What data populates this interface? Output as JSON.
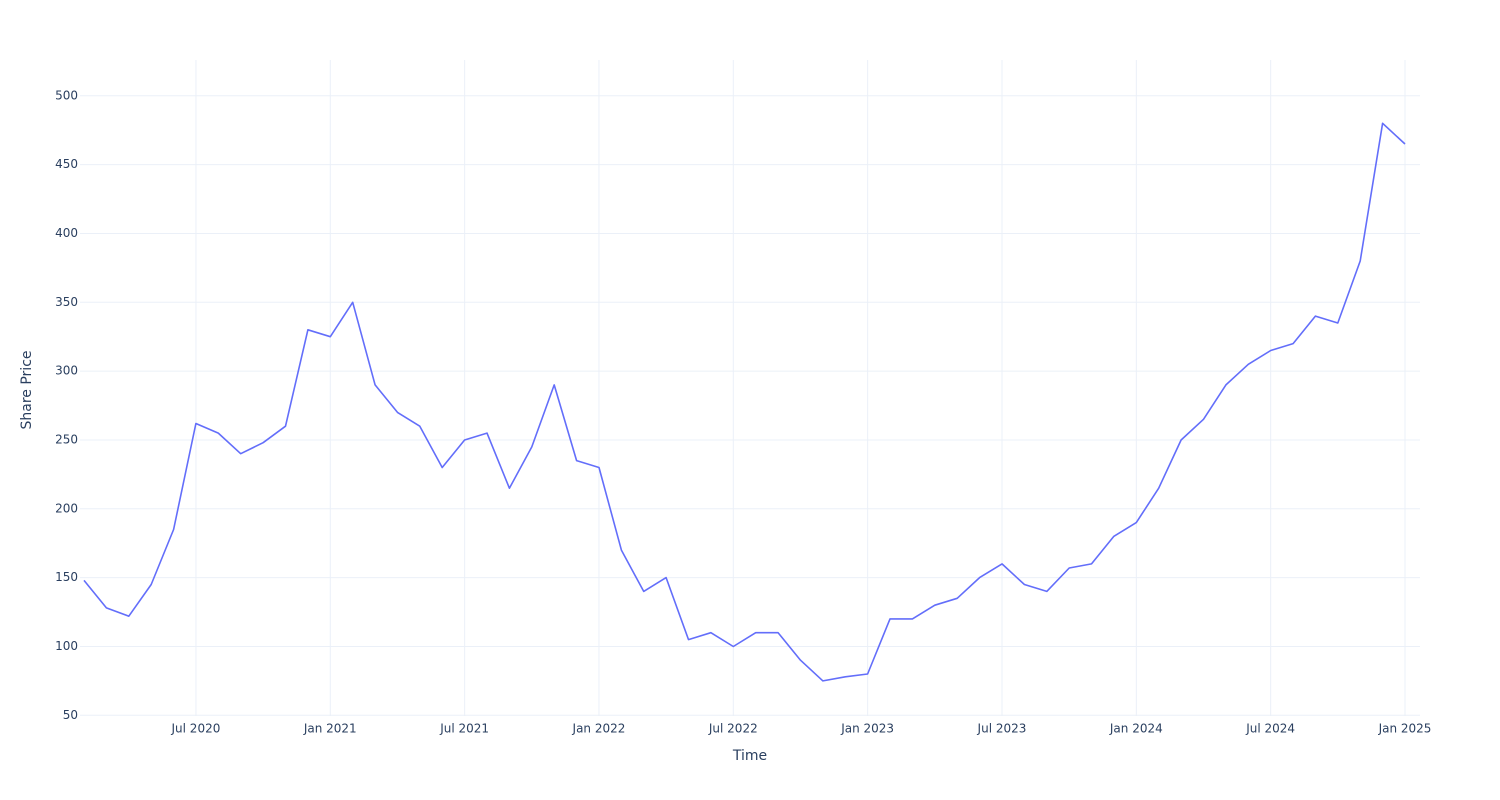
{
  "chart_data": {
    "type": "line",
    "x_label": "Time",
    "y_label": "Share Price",
    "x": [
      "2020-02",
      "2020-03",
      "2020-04",
      "2020-05",
      "2020-06",
      "2020-07",
      "2020-08",
      "2020-09",
      "2020-10",
      "2020-11",
      "2020-12",
      "2021-01",
      "2021-02",
      "2021-03",
      "2021-04",
      "2021-05",
      "2021-06",
      "2021-07",
      "2021-08",
      "2021-09",
      "2021-10",
      "2021-11",
      "2021-12",
      "2022-01",
      "2022-02",
      "2022-03",
      "2022-04",
      "2022-05",
      "2022-06",
      "2022-07",
      "2022-08",
      "2022-09",
      "2022-10",
      "2022-11",
      "2022-12",
      "2023-01",
      "2023-02",
      "2023-03",
      "2023-04",
      "2023-05",
      "2023-06",
      "2023-07",
      "2023-08",
      "2023-09",
      "2023-10",
      "2023-11",
      "2023-12",
      "2024-01",
      "2024-02",
      "2024-03",
      "2024-04",
      "2024-05",
      "2024-06",
      "2024-07",
      "2024-08",
      "2024-09",
      "2024-10",
      "2024-11",
      "2024-12",
      "2025-01"
    ],
    "series": [
      {
        "name": "Share Price",
        "color": "#636efa",
        "values": [
          148,
          128,
          122,
          145,
          185,
          262,
          255,
          240,
          248,
          260,
          330,
          325,
          350,
          290,
          270,
          260,
          230,
          250,
          255,
          215,
          245,
          290,
          235,
          230,
          170,
          140,
          150,
          105,
          110,
          100,
          110,
          110,
          90,
          75,
          78,
          80,
          120,
          120,
          130,
          135,
          150,
          160,
          145,
          140,
          157,
          160,
          180,
          190,
          215,
          250,
          265,
          290,
          305,
          315,
          320,
          340,
          335,
          380,
          480,
          465
        ]
      }
    ],
    "xlim": [
      "2020-02",
      "2025-01"
    ],
    "xticks": [
      {
        "value": "2020-07",
        "label": "Jul 2020"
      },
      {
        "value": "2021-01",
        "label": "Jan 2021"
      },
      {
        "value": "2021-07",
        "label": "Jul 2021"
      },
      {
        "value": "2022-01",
        "label": "Jan 2022"
      },
      {
        "value": "2022-07",
        "label": "Jul 2022"
      },
      {
        "value": "2023-01",
        "label": "Jan 2023"
      },
      {
        "value": "2023-07",
        "label": "Jul 2023"
      },
      {
        "value": "2024-01",
        "label": "Jan 2024"
      },
      {
        "value": "2024-07",
        "label": "Jul 2024"
      },
      {
        "value": "2025-01",
        "label": "Jan 2025"
      }
    ],
    "ylim": [
      49.5,
      526
    ],
    "yticks": [
      50,
      100,
      150,
      200,
      250,
      300,
      350,
      400,
      450,
      500
    ],
    "grid": true
  }
}
